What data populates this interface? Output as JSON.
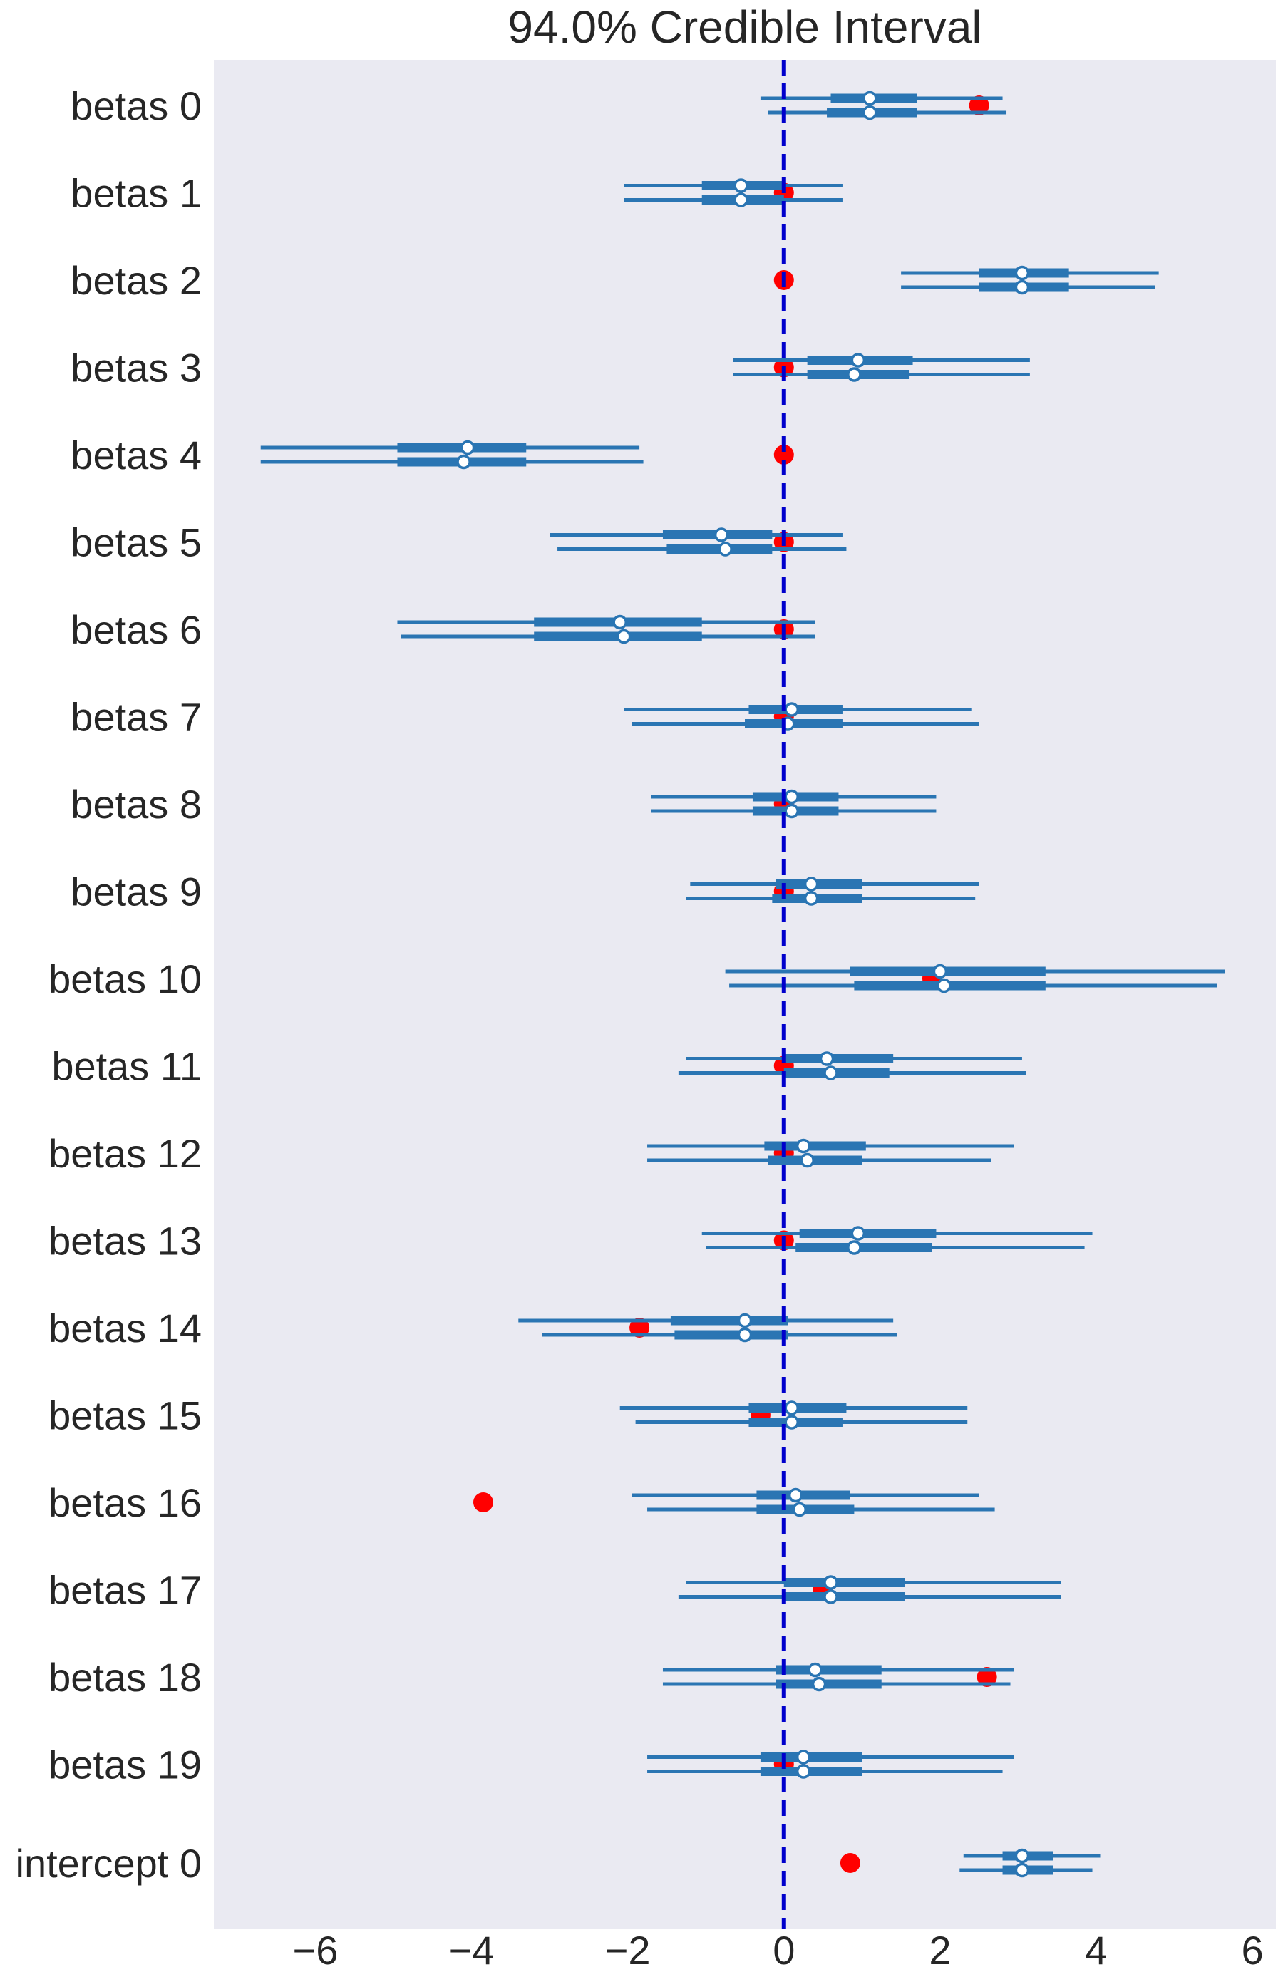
{
  "chart_data": {
    "type": "forest",
    "title": "94.0% Credible Interval",
    "xlim": [
      -7.3,
      6.3
    ],
    "xticks": [
      -6,
      -4,
      -2,
      0,
      2,
      4,
      6
    ],
    "xtick_labels": [
      "−6",
      "−4",
      "−2",
      "0",
      "2",
      "4",
      "6"
    ],
    "reference_line": {
      "x": 0,
      "color": "#0000cc",
      "style": "dashed"
    },
    "grid": false,
    "colors": {
      "background": "#eaeaf2",
      "interval": "#2a75b3",
      "true_value": "#ff0000",
      "reference": "#0000cc"
    },
    "parameters": [
      {
        "label": "betas 0",
        "true_value": 2.5,
        "chains": [
          {
            "hdi": [
              -0.3,
              2.8
            ],
            "iqr": [
              0.6,
              1.7
            ],
            "median": 1.1
          },
          {
            "hdi": [
              -0.2,
              2.85
            ],
            "iqr": [
              0.55,
              1.7
            ],
            "median": 1.1
          }
        ]
      },
      {
        "label": "betas 1",
        "true_value": 0.0,
        "chains": [
          {
            "hdi": [
              -2.05,
              0.75
            ],
            "iqr": [
              -1.05,
              0.0
            ],
            "median": -0.55
          },
          {
            "hdi": [
              -2.05,
              0.75
            ],
            "iqr": [
              -1.05,
              0.0
            ],
            "median": -0.55
          }
        ]
      },
      {
        "label": "betas 2",
        "true_value": 0.0,
        "chains": [
          {
            "hdi": [
              1.5,
              4.8
            ],
            "iqr": [
              2.5,
              3.65
            ],
            "median": 3.05
          },
          {
            "hdi": [
              1.5,
              4.75
            ],
            "iqr": [
              2.5,
              3.65
            ],
            "median": 3.05
          }
        ]
      },
      {
        "label": "betas 3",
        "true_value": 0.0,
        "chains": [
          {
            "hdi": [
              -0.65,
              3.15
            ],
            "iqr": [
              0.3,
              1.65
            ],
            "median": 0.95
          },
          {
            "hdi": [
              -0.65,
              3.15
            ],
            "iqr": [
              0.3,
              1.6
            ],
            "median": 0.9
          }
        ]
      },
      {
        "label": "betas 4",
        "true_value": 0.0,
        "chains": [
          {
            "hdi": [
              -6.7,
              -1.85
            ],
            "iqr": [
              -4.95,
              -3.3
            ],
            "median": -4.05
          },
          {
            "hdi": [
              -6.7,
              -1.8
            ],
            "iqr": [
              -4.95,
              -3.3
            ],
            "median": -4.1
          }
        ]
      },
      {
        "label": "betas 5",
        "true_value": 0.0,
        "chains": [
          {
            "hdi": [
              -3.0,
              0.75
            ],
            "iqr": [
              -1.55,
              -0.15
            ],
            "median": -0.8
          },
          {
            "hdi": [
              -2.9,
              0.8
            ],
            "iqr": [
              -1.5,
              -0.15
            ],
            "median": -0.75
          }
        ]
      },
      {
        "label": "betas 6",
        "true_value": 0.0,
        "chains": [
          {
            "hdi": [
              -4.95,
              0.4
            ],
            "iqr": [
              -3.2,
              -1.05
            ],
            "median": -2.1
          },
          {
            "hdi": [
              -4.9,
              0.4
            ],
            "iqr": [
              -3.2,
              -1.05
            ],
            "median": -2.05
          }
        ]
      },
      {
        "label": "betas 7",
        "true_value": 0.0,
        "chains": [
          {
            "hdi": [
              -2.05,
              2.4
            ],
            "iqr": [
              -0.45,
              0.75
            ],
            "median": 0.1
          },
          {
            "hdi": [
              -1.95,
              2.5
            ],
            "iqr": [
              -0.5,
              0.75
            ],
            "median": 0.05
          }
        ]
      },
      {
        "label": "betas 8",
        "true_value": 0.0,
        "chains": [
          {
            "hdi": [
              -1.7,
              1.95
            ],
            "iqr": [
              -0.4,
              0.7
            ],
            "median": 0.1
          },
          {
            "hdi": [
              -1.7,
              1.95
            ],
            "iqr": [
              -0.4,
              0.7
            ],
            "median": 0.1
          }
        ]
      },
      {
        "label": "betas 9",
        "true_value": 0.0,
        "chains": [
          {
            "hdi": [
              -1.2,
              2.5
            ],
            "iqr": [
              -0.1,
              1.0
            ],
            "median": 0.35
          },
          {
            "hdi": [
              -1.25,
              2.45
            ],
            "iqr": [
              -0.15,
              1.0
            ],
            "median": 0.35
          }
        ]
      },
      {
        "label": "betas 10",
        "true_value": 1.9,
        "chains": [
          {
            "hdi": [
              -0.75,
              5.65
            ],
            "iqr": [
              0.85,
              3.35
            ],
            "median": 2.0
          },
          {
            "hdi": [
              -0.7,
              5.55
            ],
            "iqr": [
              0.9,
              3.35
            ],
            "median": 2.05
          }
        ]
      },
      {
        "label": "betas 11",
        "true_value": 0.0,
        "chains": [
          {
            "hdi": [
              -1.25,
              3.05
            ],
            "iqr": [
              0.0,
              1.4
            ],
            "median": 0.55
          },
          {
            "hdi": [
              -1.35,
              3.1
            ],
            "iqr": [
              0.0,
              1.35
            ],
            "median": 0.6
          }
        ]
      },
      {
        "label": "betas 12",
        "true_value": 0.0,
        "chains": [
          {
            "hdi": [
              -1.75,
              2.95
            ],
            "iqr": [
              -0.25,
              1.05
            ],
            "median": 0.25
          },
          {
            "hdi": [
              -1.75,
              2.65
            ],
            "iqr": [
              -0.2,
              1.0
            ],
            "median": 0.3
          }
        ]
      },
      {
        "label": "betas 13",
        "true_value": 0.0,
        "chains": [
          {
            "hdi": [
              -1.05,
              3.95
            ],
            "iqr": [
              0.2,
              1.95
            ],
            "median": 0.95
          },
          {
            "hdi": [
              -1.0,
              3.85
            ],
            "iqr": [
              0.15,
              1.9
            ],
            "median": 0.9
          }
        ]
      },
      {
        "label": "betas 14",
        "true_value": -1.85,
        "chains": [
          {
            "hdi": [
              -3.4,
              1.4
            ],
            "iqr": [
              -1.45,
              0.05
            ],
            "median": -0.5
          },
          {
            "hdi": [
              -3.1,
              1.45
            ],
            "iqr": [
              -1.4,
              0.05
            ],
            "median": -0.5
          }
        ]
      },
      {
        "label": "betas 15",
        "true_value": -0.3,
        "chains": [
          {
            "hdi": [
              -2.1,
              2.35
            ],
            "iqr": [
              -0.45,
              0.8
            ],
            "median": 0.1
          },
          {
            "hdi": [
              -1.9,
              2.35
            ],
            "iqr": [
              -0.45,
              0.75
            ],
            "median": 0.1
          }
        ]
      },
      {
        "label": "betas 16",
        "true_value": -3.85,
        "chains": [
          {
            "hdi": [
              -1.95,
              2.5
            ],
            "iqr": [
              -0.35,
              0.85
            ],
            "median": 0.15
          },
          {
            "hdi": [
              -1.75,
              2.7
            ],
            "iqr": [
              -0.35,
              0.9
            ],
            "median": 0.2
          }
        ]
      },
      {
        "label": "betas 17",
        "true_value": 0.5,
        "chains": [
          {
            "hdi": [
              -1.25,
              3.55
            ],
            "iqr": [
              0.0,
              1.55
            ],
            "median": 0.6
          },
          {
            "hdi": [
              -1.35,
              3.55
            ],
            "iqr": [
              0.0,
              1.55
            ],
            "median": 0.6
          }
        ]
      },
      {
        "label": "betas 18",
        "true_value": 2.6,
        "chains": [
          {
            "hdi": [
              -1.55,
              2.95
            ],
            "iqr": [
              -0.1,
              1.25
            ],
            "median": 0.4
          },
          {
            "hdi": [
              -1.55,
              2.9
            ],
            "iqr": [
              -0.1,
              1.25
            ],
            "median": 0.45
          }
        ]
      },
      {
        "label": "betas 19",
        "true_value": 0.0,
        "chains": [
          {
            "hdi": [
              -1.75,
              2.95
            ],
            "iqr": [
              -0.3,
              1.0
            ],
            "median": 0.25
          },
          {
            "hdi": [
              -1.75,
              2.8
            ],
            "iqr": [
              -0.3,
              1.0
            ],
            "median": 0.25
          }
        ]
      },
      {
        "label": "intercept 0",
        "true_value": 0.85,
        "chains": [
          {
            "hdi": [
              2.3,
              4.05
            ],
            "iqr": [
              2.8,
              3.45
            ],
            "median": 3.05
          },
          {
            "hdi": [
              2.25,
              3.95
            ],
            "iqr": [
              2.8,
              3.45
            ],
            "median": 3.05
          }
        ]
      }
    ]
  }
}
